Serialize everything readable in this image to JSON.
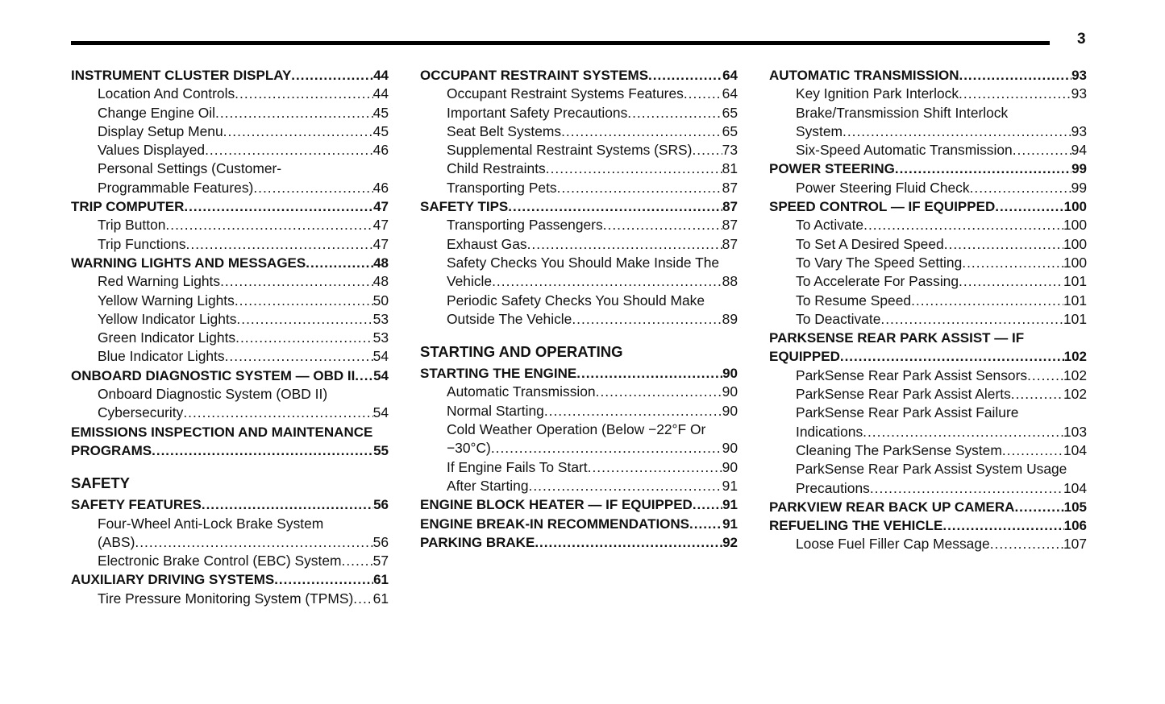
{
  "page_number": "3",
  "columns": [
    [
      {
        "lines": [
          "INSTRUMENT CLUSTER DISPLAY "
        ],
        "page": "44",
        "main": true
      },
      {
        "lines": [
          "Location And Controls "
        ],
        "page": "44"
      },
      {
        "lines": [
          "Change Engine Oil"
        ],
        "page": "45"
      },
      {
        "lines": [
          "Display Setup Menu "
        ],
        "page": "45"
      },
      {
        "lines": [
          "Values Displayed "
        ],
        "page": "46"
      },
      {
        "lines": [
          "Personal Settings (Customer-",
          "Programmable Features) "
        ],
        "page": "46"
      },
      {
        "lines": [
          "TRIP COMPUTER"
        ],
        "page": "47",
        "main": true
      },
      {
        "lines": [
          "Trip Button"
        ],
        "page": "47"
      },
      {
        "lines": [
          "Trip Functions "
        ],
        "page": "47"
      },
      {
        "lines": [
          "WARNING LIGHTS AND MESSAGES "
        ],
        "page": "48",
        "main": true
      },
      {
        "lines": [
          "Red Warning Lights"
        ],
        "page": "48"
      },
      {
        "lines": [
          "Yellow Warning Lights "
        ],
        "page": "50"
      },
      {
        "lines": [
          "Yellow Indicator Lights"
        ],
        "page": "53"
      },
      {
        "lines": [
          "Green Indicator Lights "
        ],
        "page": "53"
      },
      {
        "lines": [
          "Blue Indicator Lights"
        ],
        "page": "54"
      },
      {
        "lines": [
          "ONBOARD DIAGNOSTIC SYSTEM — OBD II "
        ],
        "page": "54",
        "main": true
      },
      {
        "lines": [
          "Onboard Diagnostic System (OBD II)",
          "Cybersecurity"
        ],
        "page": "54"
      },
      {
        "lines": [
          "EMISSIONS INSPECTION AND MAINTENANCE",
          "PROGRAMS "
        ],
        "page": "55",
        "main": true
      },
      {
        "section": "SAFETY"
      },
      {
        "lines": [
          "SAFETY FEATURES "
        ],
        "page": "56",
        "main": true
      },
      {
        "lines": [
          "Four-Wheel Anti-Lock Brake System",
          "(ABS) "
        ],
        "page": "56"
      },
      {
        "lines": [
          "Electronic Brake Control (EBC) System "
        ],
        "page": "57"
      },
      {
        "lines": [
          "AUXILIARY DRIVING SYSTEMS "
        ],
        "page": "61",
        "main": true
      },
      {
        "lines": [
          "Tire Pressure Monitoring System (TPMS)"
        ],
        "page": "61"
      }
    ],
    [
      {
        "lines": [
          "OCCUPANT RESTRAINT SYSTEMS "
        ],
        "page": "64",
        "main": true
      },
      {
        "lines": [
          "Occupant Restraint Systems Features "
        ],
        "page": "64"
      },
      {
        "lines": [
          "Important Safety Precautions"
        ],
        "page": "65"
      },
      {
        "lines": [
          "Seat Belt Systems "
        ],
        "page": "65"
      },
      {
        "lines": [
          "Supplemental Restraint Systems (SRS)"
        ],
        "page": "73"
      },
      {
        "lines": [
          "Child Restraints "
        ],
        "page": "81"
      },
      {
        "lines": [
          "Transporting Pets "
        ],
        "page": "87"
      },
      {
        "lines": [
          "SAFETY TIPS "
        ],
        "page": "87",
        "main": true
      },
      {
        "lines": [
          "Transporting Passengers "
        ],
        "page": "87"
      },
      {
        "lines": [
          "Exhaust Gas "
        ],
        "page": "87"
      },
      {
        "lines": [
          "Safety Checks You Should Make Inside The",
          "Vehicle "
        ],
        "page": "88"
      },
      {
        "lines": [
          "Periodic Safety Checks You Should Make",
          "Outside The Vehicle"
        ],
        "page": "89"
      },
      {
        "section": "STARTING AND OPERATING"
      },
      {
        "lines": [
          "STARTING THE ENGINE "
        ],
        "page": "90",
        "main": true
      },
      {
        "lines": [
          "Automatic Transmission"
        ],
        "page": "90"
      },
      {
        "lines": [
          "Normal Starting"
        ],
        "page": "90"
      },
      {
        "lines": [
          "Cold Weather Operation (Below −22°F Or",
          "−30°C) "
        ],
        "page": "90"
      },
      {
        "lines": [
          "If Engine Fails To Start "
        ],
        "page": "90"
      },
      {
        "lines": [
          "After Starting"
        ],
        "page": "91"
      },
      {
        "lines": [
          "ENGINE BLOCK HEATER — IF EQUIPPED "
        ],
        "page": "91",
        "main": true
      },
      {
        "lines": [
          "ENGINE BREAK-IN RECOMMENDATIONS "
        ],
        "page": "91",
        "main": true
      },
      {
        "lines": [
          "PARKING BRAKE "
        ],
        "page": "92",
        "main": true
      }
    ],
    [
      {
        "lines": [
          "AUTOMATIC TRANSMISSION "
        ],
        "page": "93",
        "main": true
      },
      {
        "lines": [
          "Key Ignition Park Interlock"
        ],
        "page": "93"
      },
      {
        "lines": [
          "Brake/Transmission Shift Interlock",
          "System "
        ],
        "page": "93"
      },
      {
        "lines": [
          "Six-Speed Automatic Transmission"
        ],
        "page": "94"
      },
      {
        "lines": [
          "POWER STEERING "
        ],
        "page": "99",
        "main": true
      },
      {
        "lines": [
          "Power Steering Fluid Check "
        ],
        "page": "99"
      },
      {
        "lines": [
          "SPEED CONTROL — IF EQUIPPED "
        ],
        "page": "100",
        "main": true
      },
      {
        "lines": [
          "To Activate"
        ],
        "page": "100"
      },
      {
        "lines": [
          "To Set A Desired Speed "
        ],
        "page": "100"
      },
      {
        "lines": [
          "To Vary The Speed Setting"
        ],
        "page": "100"
      },
      {
        "lines": [
          "To Accelerate For Passing"
        ],
        "page": "101"
      },
      {
        "lines": [
          "To Resume Speed "
        ],
        "page": "101"
      },
      {
        "lines": [
          "To Deactivate "
        ],
        "page": "101"
      },
      {
        "lines": [
          "PARKSENSE REAR PARK ASSIST — IF",
          "EQUIPPED"
        ],
        "page": "102",
        "main": true
      },
      {
        "lines": [
          "ParkSense Rear Park Assist Sensors"
        ],
        "page": "102"
      },
      {
        "lines": [
          "ParkSense Rear Park Assist Alerts"
        ],
        "page": "102"
      },
      {
        "lines": [
          "ParkSense Rear Park Assist Failure",
          "Indications"
        ],
        "page": "103"
      },
      {
        "lines": [
          "Cleaning The ParkSense System"
        ],
        "page": "104"
      },
      {
        "lines": [
          "ParkSense Rear Park Assist System Usage",
          "Precautions "
        ],
        "page": "104"
      },
      {
        "lines": [
          "PARKVIEW REAR BACK UP CAMERA "
        ],
        "page": "105",
        "main": true
      },
      {
        "lines": [
          "REFUELING THE VEHICLE "
        ],
        "page": "106",
        "main": true
      },
      {
        "lines": [
          "Loose Fuel Filler Cap Message"
        ],
        "page": "107"
      }
    ]
  ]
}
